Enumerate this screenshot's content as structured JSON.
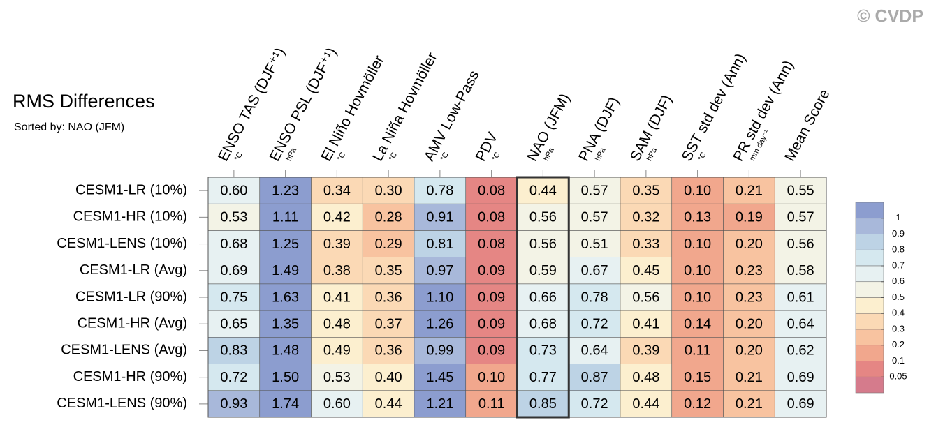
{
  "chart_data": {
    "type": "heatmap",
    "title": "RMS Differences",
    "subtitle": "Sorted by: NAO (JFM)",
    "watermark": "© CVDP",
    "columns": [
      {
        "label": "ENSO TAS (DJF⁺¹)",
        "unit": "°C"
      },
      {
        "label": "ENSO PSL (DJF⁺¹)",
        "unit": "hPa"
      },
      {
        "label": "El Niño Hovmöller",
        "unit": "°C"
      },
      {
        "label": "La Niña Hovmöller",
        "unit": "°C"
      },
      {
        "label": "AMV Low-Pass",
        "unit": "°C"
      },
      {
        "label": "PDV",
        "unit": "°C"
      },
      {
        "label": "NAO (JFM)",
        "unit": "hPa"
      },
      {
        "label": "PNA (DJF)",
        "unit": "hPa"
      },
      {
        "label": "SAM (DJF)",
        "unit": "hPa"
      },
      {
        "label": "SST std dev (Ann)",
        "unit": "°C"
      },
      {
        "label": "PR std dev (Ann)",
        "unit": "mm day⁻¹"
      },
      {
        "label": "Mean Score"
      }
    ],
    "rows": [
      "CESM1-LR (10%)",
      "CESM1-HR (10%)",
      "CESM1-LENS (10%)",
      "CESM1-LR (Avg)",
      "CESM1-LR (90%)",
      "CESM1-HR (Avg)",
      "CESM1-LENS (Avg)",
      "CESM1-HR (90%)",
      "CESM1-LENS (90%)"
    ],
    "values": [
      [
        0.6,
        1.23,
        0.34,
        0.3,
        0.78,
        0.08,
        0.44,
        0.57,
        0.35,
        0.1,
        0.21,
        0.55
      ],
      [
        0.53,
        1.11,
        0.42,
        0.28,
        0.91,
        0.08,
        0.56,
        0.57,
        0.32,
        0.13,
        0.19,
        0.57
      ],
      [
        0.68,
        1.25,
        0.39,
        0.29,
        0.81,
        0.08,
        0.56,
        0.51,
        0.33,
        0.1,
        0.2,
        0.56
      ],
      [
        0.69,
        1.49,
        0.38,
        0.35,
        0.97,
        0.09,
        0.59,
        0.67,
        0.45,
        0.1,
        0.23,
        0.58
      ],
      [
        0.75,
        1.63,
        0.41,
        0.36,
        1.1,
        0.09,
        0.66,
        0.78,
        0.56,
        0.1,
        0.23,
        0.61
      ],
      [
        0.65,
        1.35,
        0.48,
        0.37,
        1.26,
        0.09,
        0.68,
        0.72,
        0.41,
        0.14,
        0.2,
        0.64
      ],
      [
        0.83,
        1.48,
        0.49,
        0.36,
        0.99,
        0.09,
        0.73,
        0.64,
        0.39,
        0.11,
        0.2,
        0.62
      ],
      [
        0.72,
        1.5,
        0.53,
        0.4,
        1.45,
        0.1,
        0.77,
        0.87,
        0.48,
        0.15,
        0.21,
        0.69
      ],
      [
        0.93,
        1.74,
        0.6,
        0.44,
        1.21,
        0.11,
        0.85,
        0.72,
        0.44,
        0.12,
        0.21,
        0.69
      ]
    ],
    "value_labels": [
      [
        "0.60",
        "1.23",
        "0.34",
        "0.30",
        "0.78",
        "0.08",
        "0.44",
        "0.57",
        "0.35",
        "0.10",
        "0.21",
        "0.55"
      ],
      [
        "0.53",
        "1.11",
        "0.42",
        "0.28",
        "0.91",
        "0.08",
        "0.56",
        "0.57",
        "0.32",
        "0.13",
        "0.19",
        "0.57"
      ],
      [
        "0.68",
        "1.25",
        "0.39",
        "0.29",
        "0.81",
        "0.08",
        "0.56",
        "0.51",
        "0.33",
        "0.10",
        "0.20",
        "0.56"
      ],
      [
        "0.69",
        "1.49",
        "0.38",
        "0.35",
        "0.97",
        "0.09",
        "0.59",
        "0.67",
        "0.45",
        "0.10",
        "0.23",
        "0.58"
      ],
      [
        "0.75",
        "1.63",
        "0.41",
        "0.36",
        "1.10",
        "0.09",
        "0.66",
        "0.78",
        "0.56",
        "0.10",
        "0.23",
        "0.61"
      ],
      [
        "0.65",
        "1.35",
        "0.48",
        "0.37",
        "1.26",
        "0.09",
        "0.68",
        "0.72",
        "0.41",
        "0.14",
        "0.20",
        "0.64"
      ],
      [
        "0.83",
        "1.48",
        "0.49",
        "0.36",
        "0.99",
        "0.09",
        "0.73",
        "0.64",
        "0.39",
        "0.11",
        "0.20",
        "0.62"
      ],
      [
        "0.72",
        "1.50",
        "0.53",
        "0.40",
        "1.45",
        "0.10",
        "0.77",
        "0.87",
        "0.48",
        "0.15",
        "0.21",
        "0.69"
      ],
      [
        "0.93",
        "1.74",
        "0.60",
        "0.44",
        "1.21",
        "0.11",
        "0.85",
        "0.72",
        "0.44",
        "0.12",
        "0.21",
        "0.69"
      ]
    ],
    "highlight_column": 6,
    "colorbar": {
      "ticks": [
        1,
        0.9,
        0.8,
        0.7,
        0.6,
        0.5,
        0.4,
        0.3,
        0.2,
        0.1,
        0.05
      ],
      "colors": [
        "#8c9dcf",
        "#a8b8da",
        "#bdd3e5",
        "#d5e8ef",
        "#e7f1f2",
        "#f3f3e6",
        "#fcefcf",
        "#fbd9b5",
        "#f8c3a0",
        "#f1a78d",
        "#e58684",
        "#d57b8c"
      ]
    }
  }
}
